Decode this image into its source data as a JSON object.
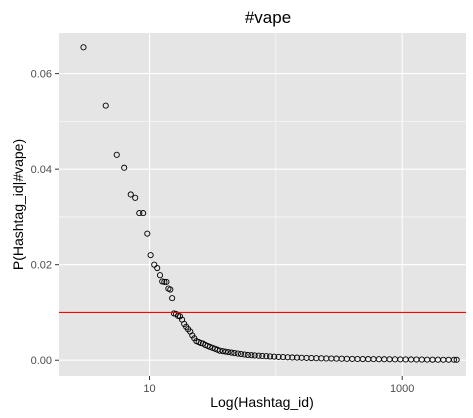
{
  "chart_data": {
    "type": "scatter",
    "title": "#vape",
    "xlabel": "Log(Hashtag_id)",
    "ylabel": "P(Hashtag_id|#vape)",
    "x_scale": "log10",
    "xlim": [
      1.92,
      3200
    ],
    "ylim": [
      -0.0033,
      0.0685
    ],
    "x_ticks": [
      10,
      1000
    ],
    "x_tick_labels": [
      "10",
      "1000"
    ],
    "y_ticks": [
      0,
      0.02,
      0.04,
      0.06
    ],
    "y_tick_labels": [
      "0.00",
      "0.02",
      "0.04",
      "0.06"
    ],
    "hline": {
      "y": 0.01,
      "color": "#ff0000"
    },
    "grid": true,
    "panel_background": "#e5e5e5",
    "grid_color": "#ffffff",
    "point_style": "open circle",
    "series": [
      {
        "points": [
          [
            3,
            0.0655
          ],
          [
            4.5,
            0.0533
          ],
          [
            5.5,
            0.043
          ],
          [
            6.3,
            0.0403
          ],
          [
            7.1,
            0.0347
          ],
          [
            7.7,
            0.034
          ],
          [
            8.3,
            0.0308
          ],
          [
            8.9,
            0.0308
          ],
          [
            9.6,
            0.0265
          ],
          [
            10.2,
            0.022
          ],
          [
            10.9,
            0.02
          ],
          [
            11.5,
            0.0193
          ],
          [
            12.1,
            0.0178
          ],
          [
            12.6,
            0.0165
          ],
          [
            13.1,
            0.0164
          ],
          [
            13.6,
            0.0164
          ],
          [
            14.1,
            0.015
          ],
          [
            14.6,
            0.0148
          ],
          [
            15.1,
            0.013
          ],
          [
            15.6,
            0.0098
          ],
          [
            16.2,
            0.0097
          ],
          [
            16.8,
            0.0093
          ],
          [
            17.4,
            0.0092
          ],
          [
            18.1,
            0.0085
          ],
          [
            18.8,
            0.0076
          ],
          [
            19.5,
            0.007
          ],
          [
            20.2,
            0.0065
          ],
          [
            21,
            0.006
          ],
          [
            21.8,
            0.0052
          ],
          [
            22.6,
            0.0046
          ],
          [
            23.5,
            0.004
          ],
          [
            24.5,
            0.0038
          ],
          [
            25.5,
            0.0036
          ],
          [
            26.5,
            0.0035
          ],
          [
            27.6,
            0.0032
          ],
          [
            28.8,
            0.003
          ],
          [
            30,
            0.0028
          ],
          [
            31.5,
            0.0026
          ],
          [
            33,
            0.0024
          ],
          [
            34.5,
            0.0022
          ],
          [
            36,
            0.002
          ],
          [
            38,
            0.0019
          ],
          [
            40,
            0.0018
          ],
          [
            42,
            0.0017
          ],
          [
            44.5,
            0.0016
          ],
          [
            47,
            0.0015
          ],
          [
            50,
            0.0014
          ],
          [
            53,
            0.0013
          ],
          [
            56.5,
            0.0012
          ],
          [
            60,
            0.0011
          ],
          [
            64,
            0.00105
          ],
          [
            68,
            0.001
          ],
          [
            73,
            0.00095
          ],
          [
            78,
            0.0009
          ],
          [
            84,
            0.00085
          ],
          [
            90,
            0.0008
          ],
          [
            97,
            0.00075
          ],
          [
            105,
            0.0007
          ],
          [
            114,
            0.00066
          ],
          [
            124,
            0.00062
          ],
          [
            135,
            0.00058
          ],
          [
            147,
            0.00055
          ],
          [
            160,
            0.00052
          ],
          [
            175,
            0.00049
          ],
          [
            191,
            0.00046
          ],
          [
            209,
            0.00043
          ],
          [
            229,
            0.0004
          ],
          [
            251,
            0.00038
          ],
          [
            275,
            0.00036
          ],
          [
            302,
            0.00034
          ],
          [
            332,
            0.00032
          ],
          [
            365,
            0.0003
          ],
          [
            402,
            0.00028
          ],
          [
            443,
            0.00026
          ],
          [
            488,
            0.00025
          ],
          [
            538,
            0.00024
          ],
          [
            593,
            0.00023
          ],
          [
            654,
            0.00022
          ],
          [
            721,
            0.00021
          ],
          [
            795,
            0.0002
          ],
          [
            877,
            0.00019
          ],
          [
            967,
            0.00018
          ],
          [
            1066,
            0.00017
          ],
          [
            1176,
            0.00016
          ],
          [
            1297,
            0.00015
          ],
          [
            1430,
            0.00014
          ],
          [
            1577,
            0.00013
          ],
          [
            1739,
            0.00012
          ],
          [
            1918,
            0.00011
          ],
          [
            2115,
            0.0001
          ],
          [
            2332,
            0.0001
          ],
          [
            2571,
            0.0001
          ],
          [
            2700,
            0.0001
          ]
        ]
      }
    ]
  }
}
